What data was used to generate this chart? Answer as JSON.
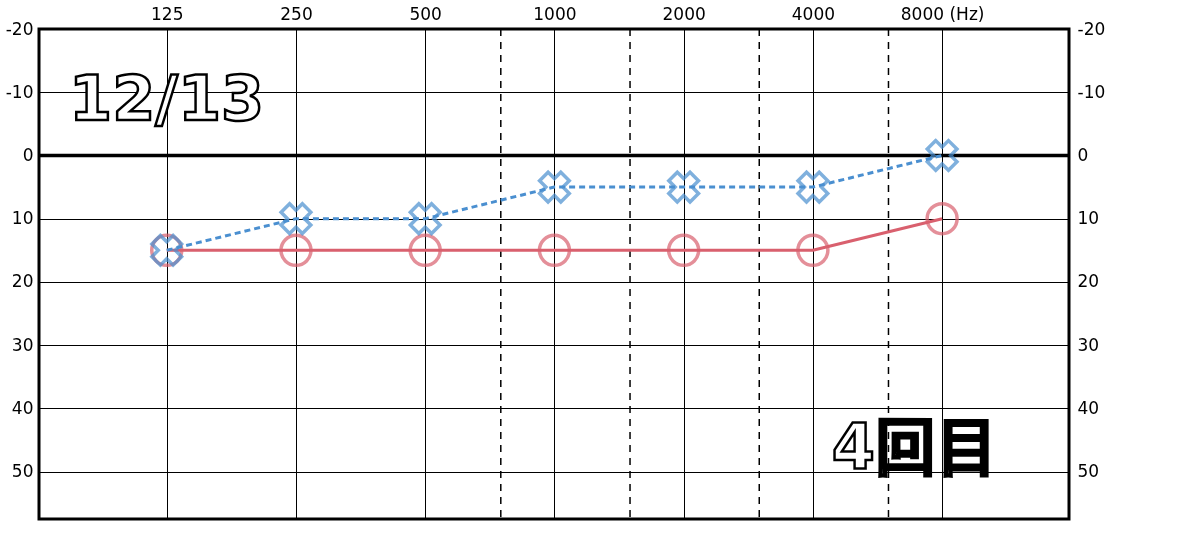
{
  "chart_data": {
    "type": "line",
    "x": [
      125,
      250,
      500,
      1000,
      2000,
      4000,
      8000
    ],
    "log": "x",
    "xlim": [
      63,
      15800
    ],
    "xticks": [
      125,
      250,
      500,
      1000,
      2000,
      4000,
      {
        "value": 8000,
        "label": "8000 (Hz)"
      }
    ],
    "ylim": [
      57.5,
      -20
    ],
    "yticks": [
      -20,
      -10,
      0,
      10,
      20,
      30,
      40,
      50
    ],
    "y2lim": [
      57.5,
      -20
    ],
    "y2ticks": [
      -20,
      -10,
      0,
      10,
      20,
      30,
      40,
      50
    ],
    "grid": true,
    "series": [
      {
        "color": "#d9606e",
        "values": [
          15,
          15,
          15,
          15,
          15,
          15,
          10
        ],
        "marker": "circle",
        "line_style": "solid"
      },
      {
        "color": "#4a8fd0",
        "values": [
          15,
          10,
          10,
          5,
          5,
          5,
          0
        ],
        "marker": "cross",
        "line_style": "dashed"
      }
    ],
    "ref_lines": [
      {
        "axis": "x",
        "value": 750,
        "line_style": "dashed"
      },
      {
        "axis": "x",
        "value": 1500,
        "line_style": "dashed"
      },
      {
        "axis": "x",
        "value": 3000,
        "line_style": "dashed"
      },
      {
        "axis": "x",
        "value": 6000,
        "line_style": "dashed"
      },
      {
        "axis": "y",
        "value": 0,
        "line_style": "solid"
      }
    ],
    "annotations": [
      "12/13",
      "4回目"
    ]
  }
}
